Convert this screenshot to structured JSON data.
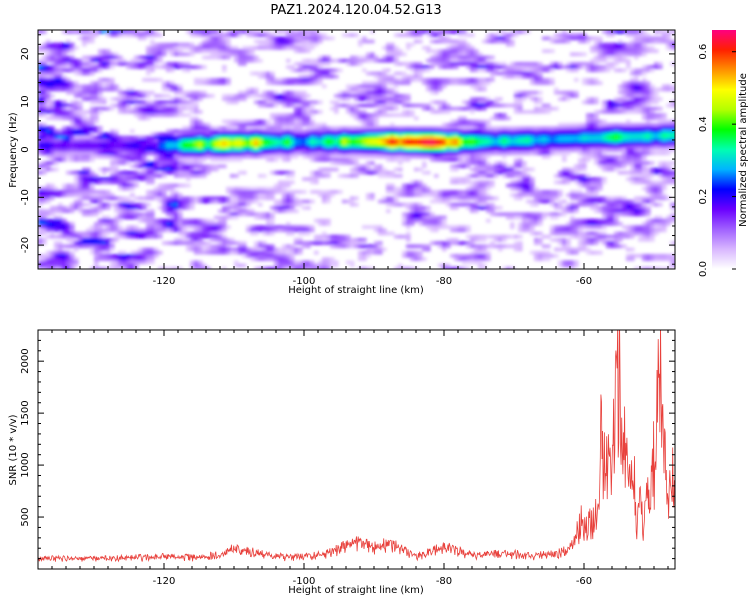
{
  "title": "PAZ1.2024.120.04.52.G13",
  "chart_data": [
    {
      "type": "heatmap",
      "xlabel": "Height of straight line (km)",
      "ylabel": "Frequency (Hz)",
      "xlim": [
        -138,
        -47
      ],
      "ylim": [
        -25,
        25
      ],
      "xticks": [
        "-120",
        "-100",
        "-80",
        "-60"
      ],
      "xtick_values": [
        -120,
        -100,
        -80,
        -60
      ],
      "yticks": [
        "20",
        "10",
        "0",
        "-10",
        "-20"
      ],
      "ytick_values": [
        20,
        10,
        0,
        -10,
        -20
      ],
      "colorbar": {
        "label": "Normalized spectral amplitude",
        "range": [
          0,
          0.66
        ],
        "ticks": [
          "0.0",
          "0.2",
          "0.4",
          "0.6"
        ],
        "tick_values": [
          0.0,
          0.2,
          0.4,
          0.6
        ],
        "colormap": [
          "#ffffff",
          "#d8b6ff",
          "#a060ff",
          "#6a00ff",
          "#0000ff",
          "#00b4ff",
          "#00ffb0",
          "#00ff00",
          "#b4ff00",
          "#ffff00",
          "#ff9000",
          "#ff2000",
          "#ff0080"
        ]
      },
      "signal_band": {
        "description_points": [
          [
            -120,
            0.8
          ],
          [
            -110,
            1.3
          ],
          [
            -100,
            1.6
          ],
          [
            -90,
            1.7
          ],
          [
            -80,
            1.5
          ],
          [
            -70,
            1.8
          ],
          [
            -60,
            2.4
          ],
          [
            -50,
            2.8
          ],
          [
            -47,
            3.0
          ]
        ],
        "peak_amplitudes": [
          [
            -120,
            0.25
          ],
          [
            -110,
            0.55
          ],
          [
            -100,
            0.3
          ],
          [
            -94,
            0.4
          ],
          [
            -90,
            0.55
          ],
          [
            -87,
            0.6
          ],
          [
            -80,
            0.6
          ],
          [
            -76,
            0.4
          ],
          [
            -70,
            0.3
          ],
          [
            -60,
            0.3
          ],
          [
            -55,
            0.35
          ],
          [
            -50,
            0.3
          ]
        ]
      },
      "grid": false
    },
    {
      "type": "line",
      "xlabel": "Height of straight line (km)",
      "ylabel": "SNR (10 * v/v)",
      "xlim": [
        -138,
        -47
      ],
      "ylim": [
        0,
        2300
      ],
      "xticks": [
        "-120",
        "-100",
        "-80",
        "-60"
      ],
      "xtick_values": [
        -120,
        -100,
        -80,
        -60
      ],
      "yticks": [
        "2000",
        "1500",
        "1000",
        "500"
      ],
      "ytick_values": [
        2000,
        1500,
        1000,
        500
      ],
      "series": [
        {
          "color": "#e8413c",
          "envelope": [
            [
              -138,
              110
            ],
            [
              -135,
              120
            ],
            [
              -130,
              115
            ],
            [
              -125,
              125
            ],
            [
              -121,
              140
            ],
            [
              -118,
              130
            ],
            [
              -115,
              135
            ],
            [
              -112,
              160
            ],
            [
              -110,
              230
            ],
            [
              -108,
              200
            ],
            [
              -105,
              150
            ],
            [
              -102,
              130
            ],
            [
              -100,
              140
            ],
            [
              -97,
              160
            ],
            [
              -94,
              260
            ],
            [
              -92,
              300
            ],
            [
              -90,
              240
            ],
            [
              -88,
              280
            ],
            [
              -86,
              230
            ],
            [
              -84,
              140
            ],
            [
              -82,
              190
            ],
            [
              -80,
              250
            ],
            [
              -78,
              200
            ],
            [
              -76,
              160
            ],
            [
              -73,
              170
            ],
            [
              -70,
              170
            ],
            [
              -67,
              150
            ],
            [
              -64,
              170
            ],
            [
              -62,
              240
            ],
            [
              -61,
              400
            ],
            [
              -60,
              600
            ],
            [
              -59,
              500
            ],
            [
              -58,
              700
            ],
            [
              -57.5,
              1600
            ],
            [
              -57,
              1050
            ],
            [
              -56.5,
              1300
            ],
            [
              -56,
              1000
            ],
            [
              -55.5,
              1900
            ],
            [
              -55,
              2280
            ],
            [
              -54.5,
              1400
            ],
            [
              -54,
              1600
            ],
            [
              -53.5,
              900
            ],
            [
              -53,
              1200
            ],
            [
              -52.5,
              600
            ],
            [
              -52,
              900
            ],
            [
              -51.5,
              500
            ],
            [
              -51,
              1200
            ],
            [
              -50.5,
              700
            ],
            [
              -50,
              1400
            ],
            [
              -49.5,
              1900
            ],
            [
              -49,
              2150
            ],
            [
              -48.5,
              1500
            ],
            [
              -48,
              700
            ],
            [
              -47.5,
              1000
            ],
            [
              -47,
              1050
            ]
          ]
        }
      ],
      "grid": false
    }
  ]
}
